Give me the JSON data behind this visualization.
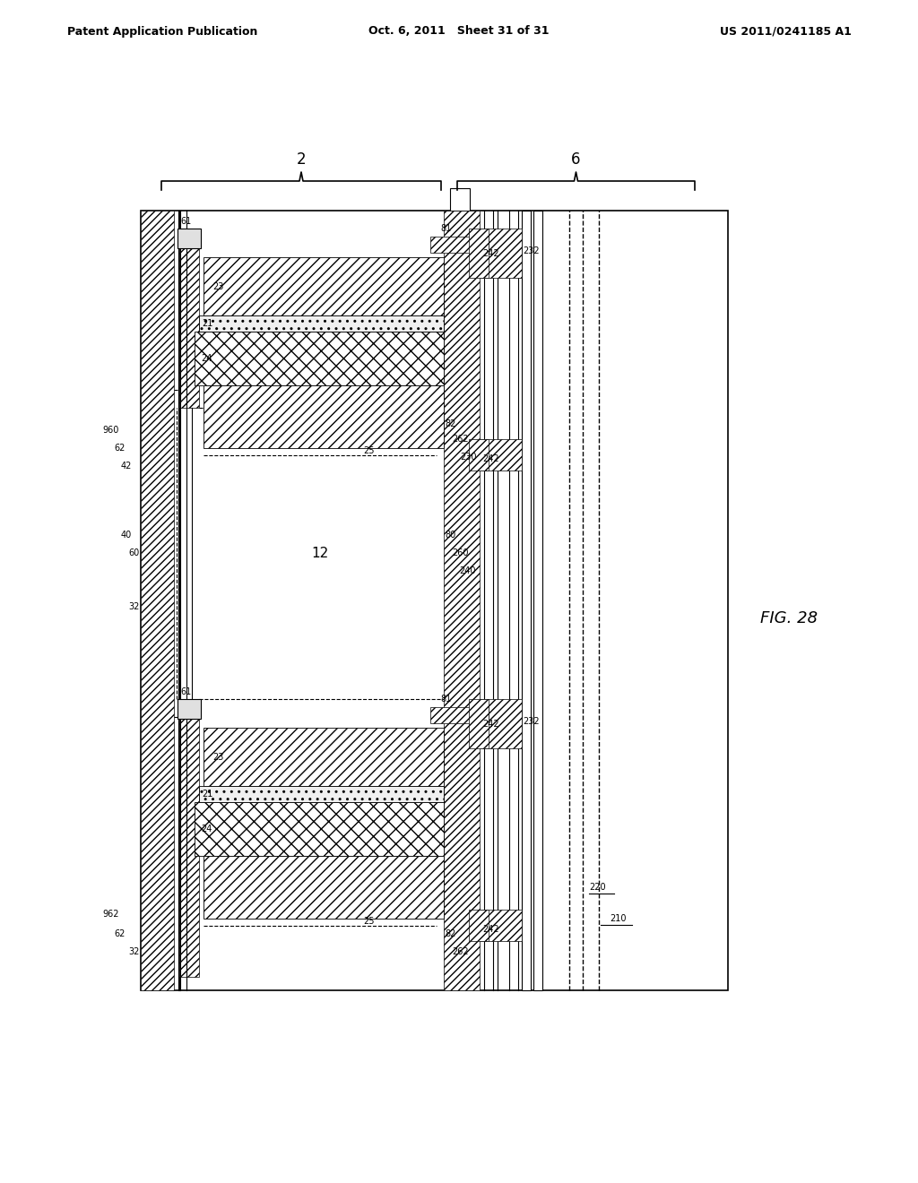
{
  "title_left": "Patent Application Publication",
  "title_center": "Oct. 6, 2011   Sheet 31 of 31",
  "title_right": "US 2011/0241185 A1",
  "fig_label": "FIG. 28",
  "background_color": "#ffffff"
}
